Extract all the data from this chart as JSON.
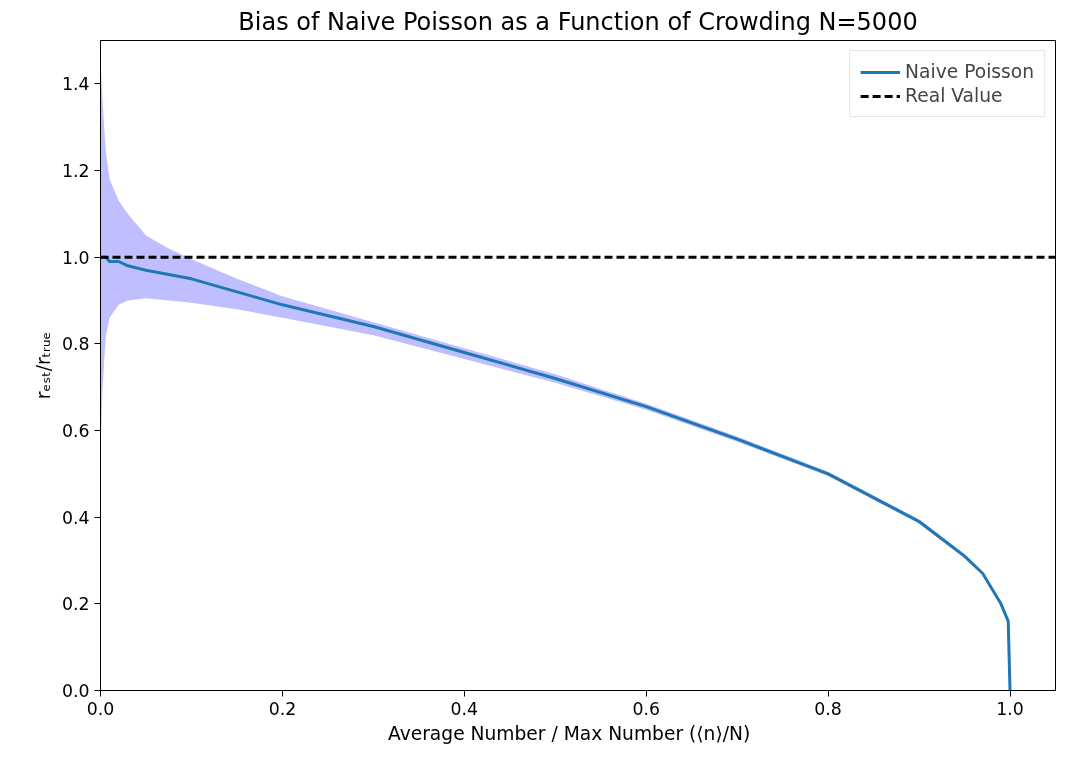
{
  "chart_data": {
    "type": "line",
    "title": "Bias of Naive Poisson as a Function of Crowding N=5000",
    "xlabel": "Average Number / Max Number    (⟨n⟩/N)",
    "ylabel": "rₑₛₜ/rₜᵣᵤₑ",
    "xlim": [
      0,
      1.05
    ],
    "ylim": [
      0,
      1.5
    ],
    "xticks": [
      {
        "value": 0,
        "label": "0.0"
      },
      0.2,
      0.4,
      0.6,
      0.8,
      {
        "value": 1,
        "label": "1.0"
      }
    ],
    "yticks": [
      {
        "value": 0,
        "label": "0.0"
      },
      0.2,
      0.4,
      0.6,
      0.8,
      {
        "value": 1,
        "label": "1.0"
      },
      1.2,
      1.4
    ],
    "legend": "top right",
    "grid": false,
    "line_style": "solid",
    "series": [
      {
        "name": "Naive Poisson",
        "color": "#1f77b4",
        "x": [
          0,
          0.002,
          0.004,
          0.006,
          0.01,
          0.02,
          0.03,
          0.05,
          0.075,
          0.1,
          0.15,
          0.2,
          0.3,
          0.4,
          0.5,
          0.6,
          0.7,
          0.8,
          0.9,
          0.95,
          0.97,
          0.99,
          0.998,
          1.0
        ],
        "values": [
          1.0,
          1.0,
          1.0,
          1.0,
          0.99,
          0.99,
          0.98,
          0.97,
          0.96,
          0.95,
          0.92,
          0.89,
          0.84,
          0.78,
          0.72,
          0.655,
          0.58,
          0.5,
          0.39,
          0.31,
          0.27,
          0.2,
          0.16,
          0.0
        ],
        "upper": [
          1.45,
          1.38,
          1.3,
          1.24,
          1.18,
          1.13,
          1.1,
          1.05,
          1.02,
          0.995,
          0.95,
          0.91,
          0.85,
          0.79,
          0.73,
          0.662,
          0.586,
          0.505,
          0.395,
          0.315,
          0.273,
          0.203,
          0.163,
          0.0
        ],
        "lower": [
          0.55,
          0.68,
          0.76,
          0.82,
          0.86,
          0.89,
          0.9,
          0.905,
          0.9,
          0.895,
          0.88,
          0.86,
          0.82,
          0.765,
          0.71,
          0.648,
          0.574,
          0.495,
          0.385,
          0.305,
          0.267,
          0.197,
          0.157,
          0.0
        ]
      },
      {
        "name": "Real Value",
        "color": "#000000",
        "line_style": "dashed",
        "x": [
          0,
          1.05
        ],
        "values": [
          1.0,
          1.0
        ]
      }
    ]
  }
}
